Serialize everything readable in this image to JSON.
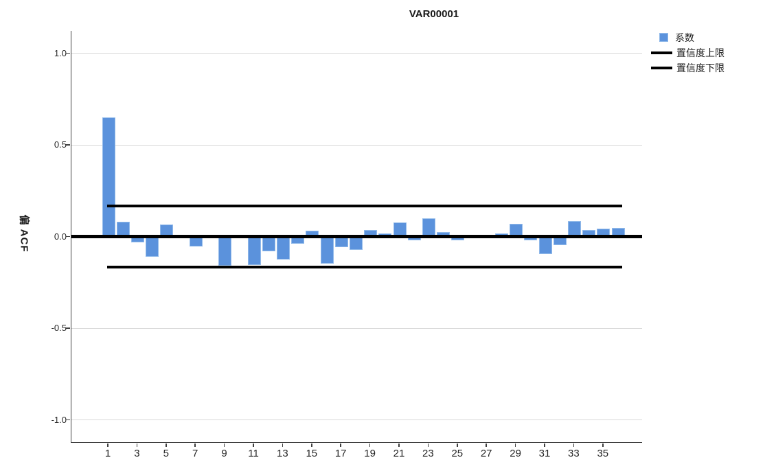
{
  "title": "VAR00001",
  "y_axis_title": "偏 ACF",
  "legend": {
    "coefficient_label": "系数",
    "upper_cl_label": "置信度上限",
    "lower_cl_label": "置信度下限"
  },
  "colors": {
    "bar_fill": "#5b92dc",
    "bar_border": "#93bbea",
    "confidence_line": "#000000",
    "zero_line": "#000000",
    "gridline": "#d9d9d9",
    "axis_line": "#3f3f3f",
    "text": "#262626"
  },
  "chart_data": {
    "type": "bar",
    "title": "VAR00001",
    "xlabel": "",
    "ylabel": "偏 ACF",
    "x": [
      1,
      2,
      3,
      4,
      5,
      6,
      7,
      8,
      9,
      10,
      11,
      12,
      13,
      14,
      15,
      16,
      17,
      18,
      19,
      20,
      21,
      22,
      23,
      24,
      25,
      26,
      27,
      28,
      29,
      30,
      31,
      32,
      33,
      34,
      35,
      36
    ],
    "values": [
      0.65,
      0.08,
      -0.03,
      -0.11,
      0.066,
      -0.01,
      -0.055,
      0.0,
      -0.16,
      0.0,
      -0.155,
      -0.08,
      -0.125,
      -0.04,
      0.03,
      -0.148,
      -0.057,
      -0.073,
      0.035,
      0.015,
      0.075,
      -0.02,
      0.1,
      0.025,
      -0.022,
      0.0,
      0.0,
      0.015,
      0.07,
      -0.02,
      -0.095,
      -0.048,
      0.085,
      0.035,
      0.042,
      0.048
    ],
    "confidence_upper": 0.165,
    "confidence_lower": -0.165,
    "x_tick_labels": [
      "1",
      "3",
      "5",
      "7",
      "9",
      "11",
      "13",
      "15",
      "17",
      "19",
      "21",
      "23",
      "25",
      "27",
      "29",
      "31",
      "33",
      "35"
    ],
    "x_ticks": [
      1,
      3,
      5,
      7,
      9,
      11,
      13,
      15,
      17,
      19,
      21,
      23,
      25,
      27,
      29,
      31,
      33,
      35
    ],
    "y_tick_labels": [
      "1.0",
      "0.5",
      "0.0",
      "-0.5",
      "-1.0"
    ],
    "y_ticks": [
      1.0,
      0.5,
      0.0,
      -0.5,
      -1.0
    ],
    "ylim": [
      -1.12,
      1.12
    ],
    "grid": true,
    "legend_entries": [
      "系数",
      "置信度上限",
      "置信度下限"
    ],
    "legend_position": "top-right",
    "series_name": "系数"
  }
}
